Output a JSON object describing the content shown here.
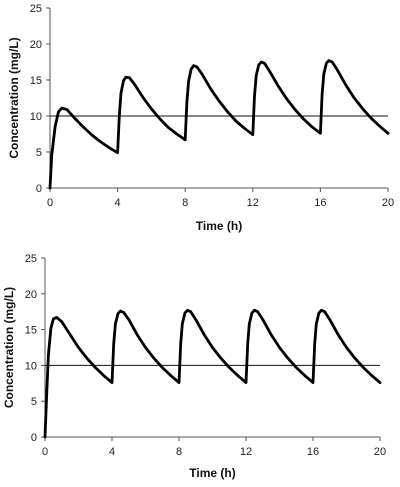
{
  "chart_data": [
    {
      "type": "line",
      "title": "",
      "xlabel": "Time (h)",
      "ylabel": "Concentration (mg/L)",
      "xlim": [
        0,
        20
      ],
      "ylim": [
        0,
        25
      ],
      "xticks": [
        0,
        4,
        8,
        12,
        16,
        20
      ],
      "yticks": [
        0,
        5,
        10,
        15,
        20,
        25
      ],
      "grid": false,
      "reference_line": {
        "y": 10
      },
      "series": [
        {
          "x": [
            0,
            0.1,
            0.3,
            0.5,
            0.7,
            1.0,
            1.5,
            2,
            2.5,
            3,
            3.5,
            4.0,
            4.1,
            4.2,
            4.35,
            4.5,
            4.7,
            5,
            5.5,
            6,
            6.5,
            7,
            7.5,
            8.0,
            8.1,
            8.2,
            8.35,
            8.5,
            8.7,
            9,
            9.5,
            10,
            10.5,
            11,
            11.5,
            12.0,
            12.1,
            12.2,
            12.35,
            12.5,
            12.7,
            13,
            13.5,
            14,
            14.5,
            15,
            15.5,
            16.0,
            16.1,
            16.2,
            16.35,
            16.5,
            16.7,
            17,
            17.5,
            18,
            18.5,
            19,
            19.5,
            20
          ],
          "y": [
            0,
            4.5,
            8.5,
            10.6,
            11.1,
            10.9,
            9.6,
            8.4,
            7.3,
            6.4,
            5.6,
            4.9,
            10.0,
            13.2,
            14.9,
            15.4,
            15.3,
            14.4,
            12.6,
            11.0,
            9.6,
            8.4,
            7.5,
            6.7,
            12.0,
            14.8,
            16.5,
            17.0,
            16.8,
            15.8,
            13.8,
            12.1,
            10.6,
            9.3,
            8.3,
            7.4,
            12.8,
            15.6,
            17.1,
            17.5,
            17.3,
            16.2,
            14.2,
            12.4,
            10.9,
            9.6,
            8.5,
            7.6,
            13.0,
            15.8,
            17.3,
            17.7,
            17.5,
            16.4,
            14.3,
            12.5,
            11.0,
            9.7,
            8.6,
            7.6
          ]
        }
      ]
    },
    {
      "type": "line",
      "title": "",
      "xlabel": "Time (h)",
      "ylabel": "Concentration (mg/L)",
      "xlim": [
        0,
        20
      ],
      "ylim": [
        0,
        25
      ],
      "xticks": [
        0,
        4,
        8,
        12,
        16,
        20
      ],
      "yticks": [
        0,
        5,
        10,
        15,
        20,
        25
      ],
      "grid": false,
      "reference_line": {
        "y": 10
      },
      "series": [
        {
          "x": [
            0,
            0.1,
            0.2,
            0.35,
            0.5,
            0.7,
            1.0,
            1.5,
            2,
            2.5,
            3,
            3.5,
            4.0,
            4.1,
            4.2,
            4.35,
            4.5,
            4.7,
            5,
            5.5,
            6,
            6.5,
            7,
            7.5,
            8.0,
            8.1,
            8.2,
            8.35,
            8.5,
            8.7,
            9,
            9.5,
            10,
            10.5,
            11,
            11.5,
            12.0,
            12.1,
            12.2,
            12.35,
            12.5,
            12.7,
            13,
            13.5,
            14,
            14.5,
            15,
            15.5,
            16.0,
            16.1,
            16.2,
            16.35,
            16.5,
            16.7,
            17,
            17.5,
            18,
            18.5,
            19,
            19.5,
            20
          ],
          "y": [
            0,
            6.0,
            11.5,
            15.2,
            16.5,
            16.7,
            16.1,
            14.3,
            12.5,
            11.0,
            9.7,
            8.6,
            7.6,
            13.0,
            15.8,
            17.2,
            17.6,
            17.4,
            16.4,
            14.3,
            12.5,
            11.0,
            9.7,
            8.6,
            7.6,
            13.0,
            15.8,
            17.3,
            17.7,
            17.5,
            16.4,
            14.3,
            12.5,
            11.0,
            9.7,
            8.6,
            7.6,
            13.0,
            15.8,
            17.3,
            17.7,
            17.5,
            16.4,
            14.3,
            12.5,
            11.0,
            9.7,
            8.6,
            7.6,
            13.0,
            15.8,
            17.3,
            17.7,
            17.5,
            16.4,
            14.3,
            12.5,
            11.0,
            9.7,
            8.6,
            7.6
          ]
        }
      ]
    }
  ]
}
